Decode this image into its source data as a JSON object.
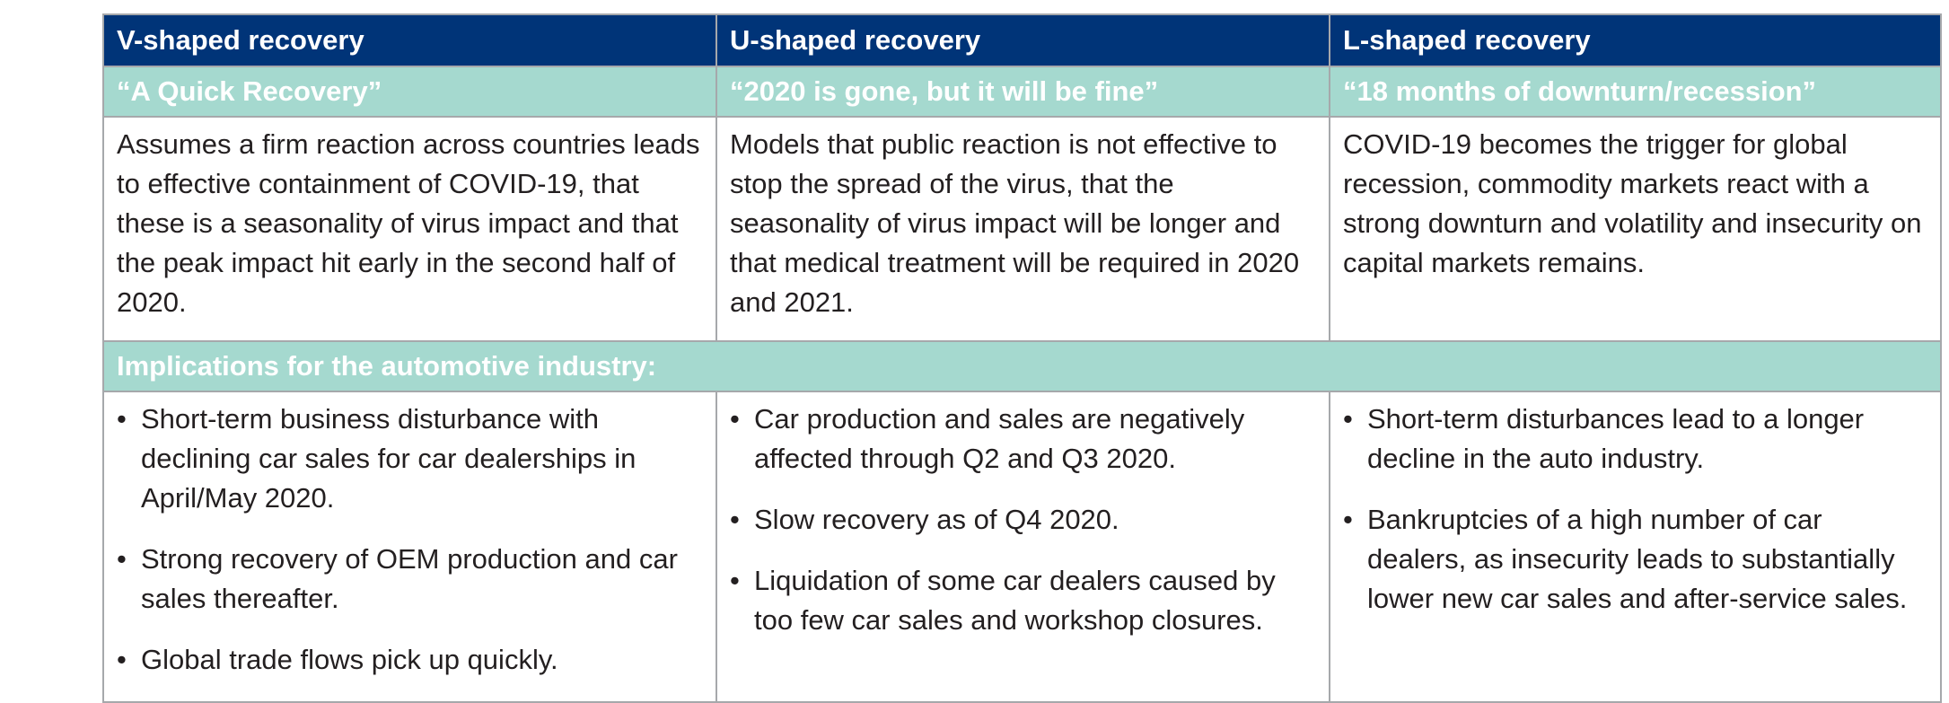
{
  "table": {
    "columns": [
      {
        "header": "V-shaped recovery",
        "quote": "“A Quick Recovery”",
        "description": "Assumes a firm reaction across countries leads to effective containment of COVID-19, that these is a seasonality of virus impact and that the peak impact hit early in the second half of 2020.",
        "bullets": [
          "Short-term business disturbance with declining car sales for car dealerships in April/May 2020.",
          "Strong recovery of OEM production and car sales thereafter.",
          "Global trade flows pick up quickly."
        ]
      },
      {
        "header": "U-shaped recovery",
        "quote": "“2020 is gone, but it will be fine”",
        "description": "Models that public reaction is not effective to stop the spread of the virus, that the seasonality of virus impact will be longer and that medical treatment will be required in 2020 and 2021.",
        "bullets": [
          "Car production and sales are negatively affected through Q2 and Q3 2020.",
          "Slow recovery as of Q4 2020.",
          "Liquidation of some car dealers caused by too few car sales and workshop closures."
        ]
      },
      {
        "header": "L-shaped recovery",
        "quote": "“18 months of downturn/recession”",
        "description": "COVID-19 becomes the trigger for global recession, commodity markets react with a strong downturn and volatility and insecurity on capital markets remains.",
        "bullets": [
          "Short-term disturbances lead to a longer decline in the auto industry.",
          "Bankruptcies of a high number of car dealers, as insecurity leads to substantially lower new car sales and after-service sales."
        ]
      }
    ],
    "implications_label": "Implications for the automotive industry:",
    "bullet_glyph": "•"
  },
  "colors": {
    "header_bg": "#003478",
    "subheader_bg": "#a5d9cf",
    "border": "#a6a8ab",
    "text": "#231f20"
  }
}
